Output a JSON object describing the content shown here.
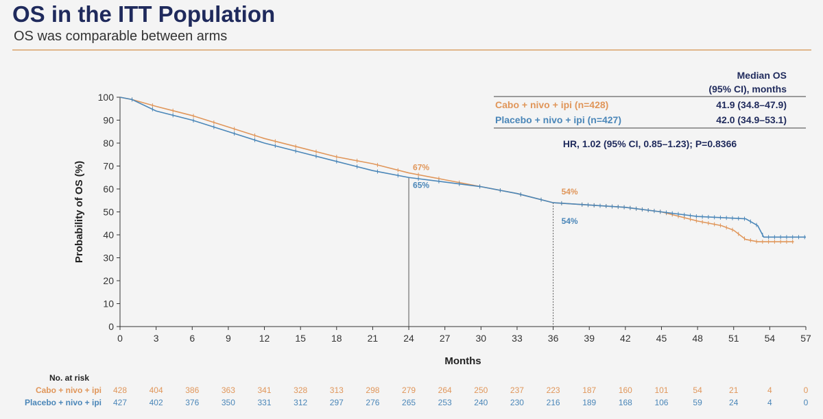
{
  "title": "OS in the ITT Population",
  "subtitle": "OS was comparable between arms",
  "legend": {
    "header_line1": "Median OS",
    "header_line2": "(95% CI), months",
    "rows": [
      {
        "label": "Cabo + nivo + ipi (n=428)",
        "value": "41.9 (34.8–47.9)",
        "color": "#e0965a"
      },
      {
        "label": "Placebo + nivo + ipi (n=427)",
        "value": "42.0 (34.9–53.1)",
        "color": "#4a86b8"
      }
    ],
    "hr_text": "HR, 1.02 (95% CI, 0.85–1.23); P=0.8366"
  },
  "chart_data": {
    "type": "line",
    "xlabel": "Months",
    "ylabel": "Probability of OS (%)",
    "xlim": [
      0,
      57
    ],
    "ylim": [
      0,
      100
    ],
    "xticks": [
      0,
      3,
      6,
      9,
      12,
      15,
      18,
      21,
      24,
      27,
      30,
      33,
      36,
      39,
      42,
      45,
      48,
      51,
      54,
      57
    ],
    "yticks": [
      0,
      10,
      20,
      30,
      40,
      50,
      60,
      70,
      80,
      90,
      100
    ],
    "grid": false,
    "series": [
      {
        "name": "Cabo + nivo + ipi",
        "color": "#e0965a",
        "x": [
          0,
          1,
          3,
          6,
          9,
          12,
          15,
          18,
          21,
          24,
          27,
          30,
          33,
          36,
          39,
          42,
          45,
          48,
          50,
          51,
          52,
          53,
          56
        ],
        "y": [
          100,
          99,
          96,
          92,
          87,
          82,
          78,
          74,
          71,
          67,
          64,
          61,
          58,
          54,
          53,
          52,
          50,
          46,
          44,
          42,
          38,
          37,
          37
        ]
      },
      {
        "name": "Placebo + nivo + ipi",
        "color": "#4a86b8",
        "x": [
          0,
          1,
          3,
          6,
          9,
          12,
          15,
          18,
          21,
          24,
          27,
          30,
          33,
          36,
          39,
          42,
          45,
          48,
          52,
          53,
          53.5,
          57
        ],
        "y": [
          100,
          99,
          94,
          90,
          85,
          80,
          76,
          72,
          68,
          65,
          63,
          61,
          58,
          54,
          53,
          52,
          50,
          48,
          47,
          44,
          39,
          39
        ]
      }
    ],
    "annotations": [
      {
        "text": "67%",
        "x": 24,
        "series": "Cabo + nivo + ipi"
      },
      {
        "text": "65%",
        "x": 24,
        "series": "Placebo + nivo + ipi"
      },
      {
        "text": "54%",
        "x": 36,
        "series": "Cabo + nivo + ipi"
      },
      {
        "text": "54%",
        "x": 36,
        "series": "Placebo + nivo + ipi"
      }
    ],
    "reference_lines_x": [
      24,
      36
    ],
    "risk_table": {
      "title": "No. at risk",
      "rows": [
        {
          "label": "Cabo + nivo + ipi",
          "values": [
            428,
            404,
            386,
            363,
            341,
            328,
            313,
            298,
            279,
            264,
            250,
            237,
            223,
            187,
            160,
            101,
            54,
            21,
            4,
            0
          ]
        },
        {
          "label": "Placebo + nivo + ipi",
          "values": [
            427,
            402,
            376,
            350,
            331,
            312,
            297,
            276,
            265,
            253,
            240,
            230,
            216,
            189,
            168,
            106,
            59,
            24,
            4,
            0
          ]
        }
      ]
    }
  }
}
